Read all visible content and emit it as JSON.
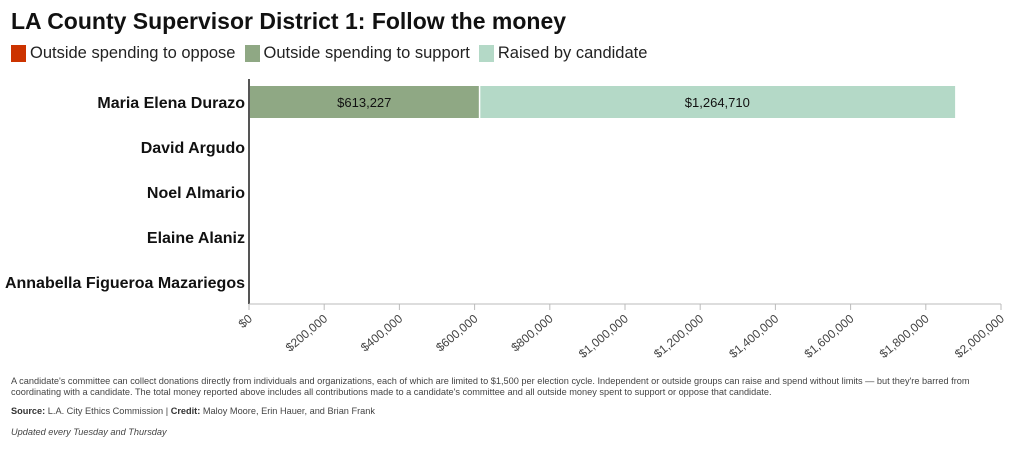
{
  "header": {
    "title": "LA County Supervisor District 1: Follow the money"
  },
  "chart_data": {
    "type": "bar",
    "orientation": "horizontal",
    "stacked": true,
    "categories": [
      "Maria Elena Durazo",
      "David Argudo",
      "Noel Almario",
      "Elaine Alaniz",
      "Annabella Figueroa Mazariegos"
    ],
    "series": [
      {
        "name": "Outside spending to oppose",
        "color": "#cc3300",
        "values": [
          0,
          0,
          0,
          0,
          0
        ]
      },
      {
        "name": "Outside spending to support",
        "color": "#8fa884",
        "values": [
          613227,
          0,
          0,
          0,
          0
        ]
      },
      {
        "name": "Raised by candidate",
        "color": "#b4d9c7",
        "values": [
          1264710,
          0,
          0,
          0,
          0
        ]
      }
    ],
    "data_labels": [
      {
        "category": "Maria Elena Durazo",
        "series": "Outside spending to support",
        "text": "$613,227"
      },
      {
        "category": "Maria Elena Durazo",
        "series": "Raised by candidate",
        "text": "$1,264,710"
      }
    ],
    "xlim": [
      0,
      2000000
    ],
    "x_ticks": [
      0,
      200000,
      400000,
      600000,
      800000,
      1000000,
      1200000,
      1400000,
      1600000,
      1800000,
      2000000
    ],
    "x_tick_labels": [
      "$0",
      "$200,000",
      "$400,000",
      "$600,000",
      "$800,000",
      "$1,000,000",
      "$1,200,000",
      "$1,400,000",
      "$1,600,000",
      "$1,800,000",
      "$2,000,000"
    ],
    "xlabel": "",
    "ylabel": "",
    "grid": false,
    "legend_position": "top-left"
  },
  "notes": {
    "text": "A candidate's committee can collect donations directly from individuals and organizations, each of which are limited to $1,500 per election cycle. Independent or outside groups can raise and spend without limits — but they're barred from coordinating with a candidate. The total money reported above includes all contributions made to a candidate's committee and all outside money spent to support or oppose that candidate.",
    "source_label": "Source:",
    "source": "L.A. City Ethics Commission",
    "separator": "|",
    "credit_label": "Credit:",
    "credit": "Maloy Moore, Erin Hauer, and Brian Frank",
    "updated": "Updated every Tuesday and Thursday"
  }
}
